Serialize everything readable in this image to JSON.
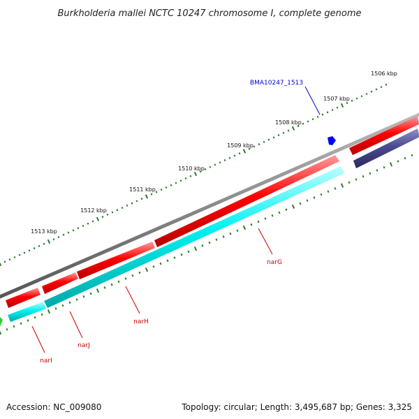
{
  "title": "Burkholderia mallei NCTC 10247 chromosome I, complete genome",
  "footer": {
    "accession": "Accession: NC_009080",
    "topology": "Topology: circular; Length: 3,495,687 bp; Genes: 3,325"
  },
  "scale_labels": [
    "1506 kbp",
    "1507 kbp",
    "1508 kbp",
    "1509 kbp",
    "1510 kbp",
    "1511 kbp",
    "1512 kbp",
    "1513 kbp"
  ],
  "gene_labels": [
    {
      "text": "BMA10247_1513",
      "color": "#0000cc"
    },
    {
      "text": "narG",
      "color": "#cc0000"
    },
    {
      "text": "narH",
      "color": "#cc0000"
    },
    {
      "text": "narJ",
      "color": "#cc0000"
    },
    {
      "text": "narI",
      "color": "#cc0000"
    }
  ],
  "colors": {
    "backbone": "#8a8a8a",
    "cds_forward": "#ff0000",
    "cds_reverse_cyan": "#00f0f0",
    "cds_reverse_navy": "#4a4a90",
    "small_feature_blue": "#0000ff",
    "green_feature": "#33cc33",
    "tick": "#2a7a2a"
  }
}
